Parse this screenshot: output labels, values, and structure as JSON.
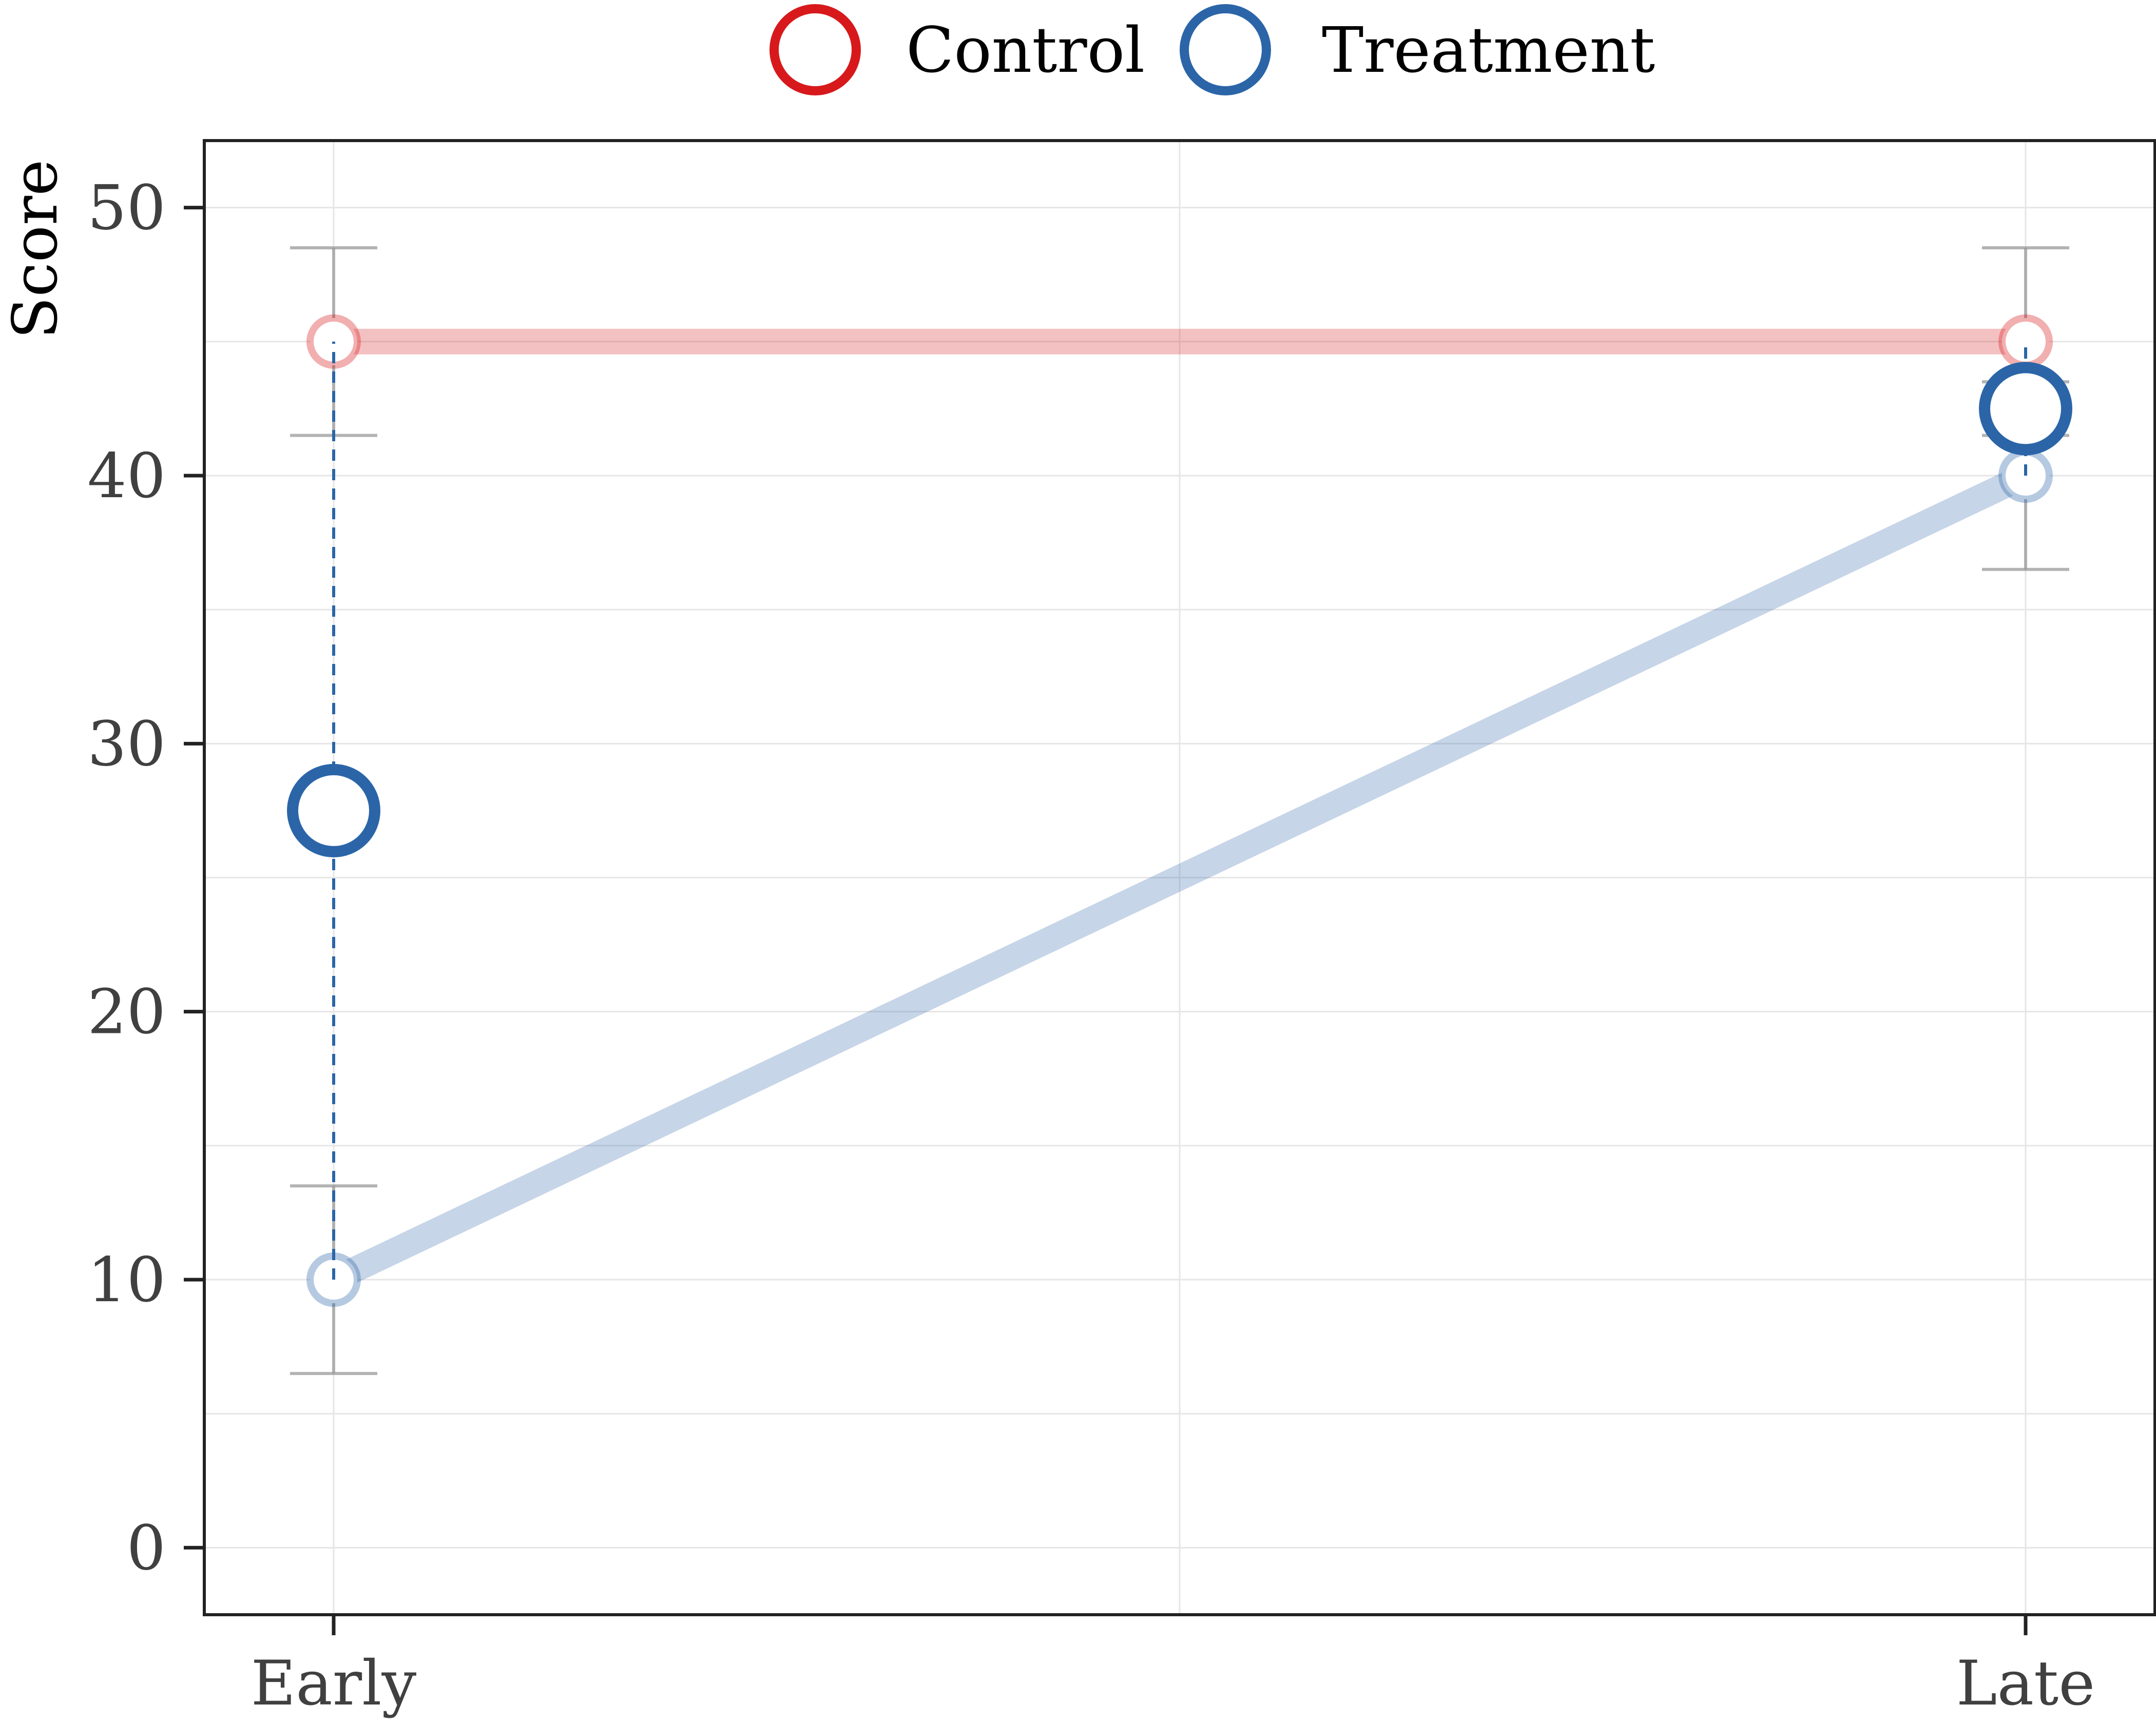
{
  "chart_data": {
    "type": "line",
    "title": "",
    "xlabel": "",
    "ylabel": "Score",
    "categories": [
      "Early",
      "Late"
    ],
    "ylim": [
      -2.5,
      52.5
    ],
    "yticks": [
      0,
      10,
      20,
      30,
      40,
      50
    ],
    "grid": true,
    "legend_position": "top",
    "series": [
      {
        "name": "Control",
        "color": "#d7191c",
        "values": [
          45,
          45
        ],
        "error": [
          3.5,
          3.5
        ]
      },
      {
        "name": "Treatment",
        "color": "#2b65a8",
        "values": [
          10,
          40
        ],
        "error": [
          3.5,
          3.5
        ],
        "highlight_values": [
          27.5,
          42.5
        ]
      }
    ]
  }
}
